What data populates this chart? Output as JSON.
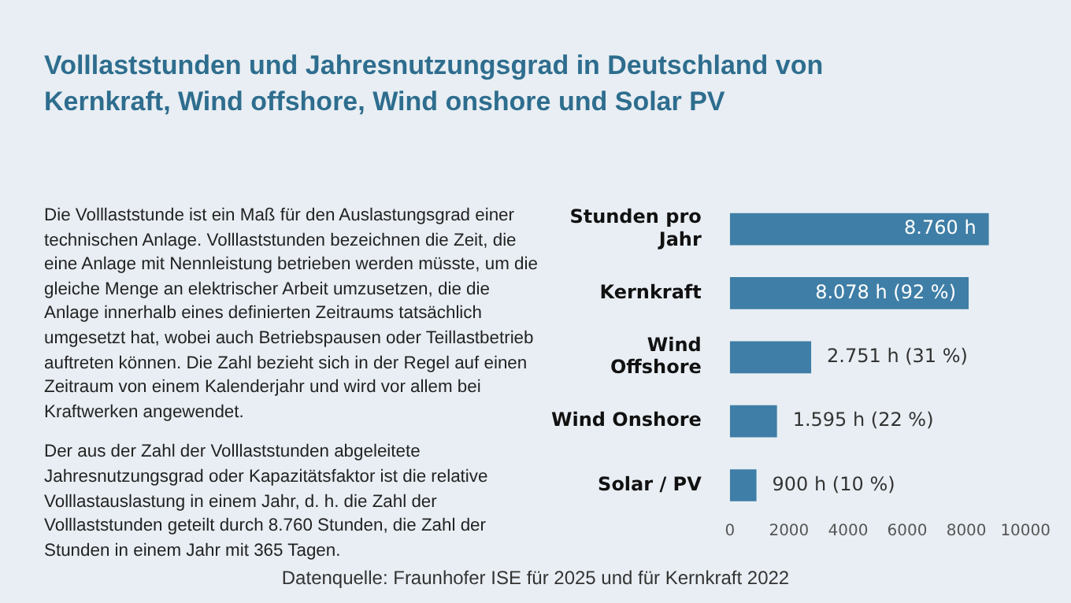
{
  "chart_data": {
    "type": "bar",
    "orientation": "horizontal",
    "title": "Volllaststunden und Jahresnutzungsgrad in Deutschland von Kernkraft, Wind offshore, Wind onshore und Solar PV",
    "categories": [
      "Stunden pro Jahr",
      "Kernkraft",
      "Wind Offshore",
      "Wind Onshore",
      "Solar / PV"
    ],
    "values": [
      8760,
      8078,
      2751,
      1595,
      900
    ],
    "value_labels": [
      "8.760 h",
      "8.078 h (92 %)",
      "2.751 h (31 %)",
      "1.595 h (22 %)",
      "900 h (10 %)"
    ],
    "color": "#3f7ea6",
    "xlim": [
      0,
      10000
    ],
    "xticks": [
      0,
      2000,
      4000,
      6000,
      8000,
      10000
    ],
    "annotations": [
      "Die Volllaststunde ist ein Maß für den Auslastungsgrad einer technischen Anlage. Volllaststunden bezeichnen die Zeit, die eine Anlage mit Nennleistung betrieben werden müsste, um die gleiche Menge an elektrischer Arbeit umzusetzen, die die Anlage innerhalb eines definierten Zeitraums tatsächlich umgesetzt hat, wobei auch Betriebspausen oder Teillastbetrieb auftreten können. Die Zahl bezieht sich in der Regel auf einen Zeitraum von einem Kalenderjahr und wird vor allem bei Kraftwerken angewendet.",
      "Der aus der Zahl der Volllaststunden abgeleitete Jahresnutzungsgrad oder Kapazitätsfaktor ist die relative Volllastauslastung in einem Jahr, d. h. die Zahl der Volllaststunden geteilt durch 8.760 Stunden, die Zahl der Stunden in einem Jahr mit 365 Tagen.",
      "Datenquelle: Fraunhofer ISE für 2025 und für Kernkraft 2022"
    ]
  }
}
